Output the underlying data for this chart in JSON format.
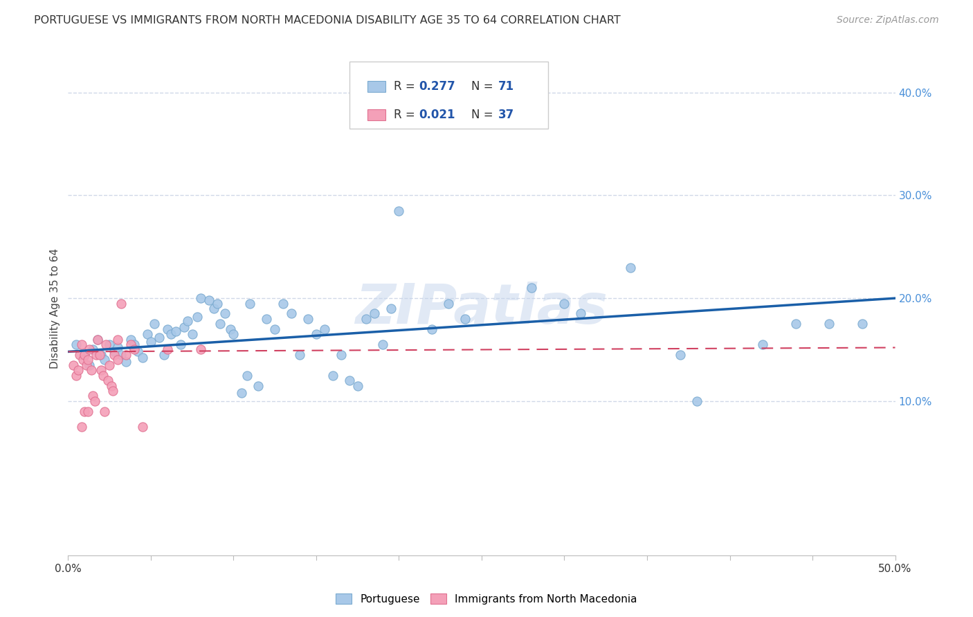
{
  "title": "PORTUGUESE VS IMMIGRANTS FROM NORTH MACEDONIA DISABILITY AGE 35 TO 64 CORRELATION CHART",
  "source": "Source: ZipAtlas.com",
  "ylabel": "Disability Age 35 to 64",
  "xlim": [
    0.0,
    0.5
  ],
  "ylim": [
    -0.05,
    0.43
  ],
  "yticks": [
    0.1,
    0.2,
    0.3,
    0.4
  ],
  "background_color": "#ffffff",
  "grid_color": "#d0d8e8",
  "r_portuguese": 0.277,
  "n_portuguese": 71,
  "r_north_macedonia": 0.021,
  "n_north_macedonia": 37,
  "portuguese_color": "#a8c8e8",
  "portuguese_edge": "#7aaad0",
  "north_macedonia_color": "#f4a0b8",
  "north_macedonia_edge": "#e07090",
  "trend_blue": "#1a5fa8",
  "trend_pink": "#d04060",
  "watermark": "ZIPatlas",
  "title_fontsize": 11.5,
  "axis_label_fontsize": 11,
  "tick_fontsize": 11,
  "legend_fontsize": 12,
  "source_fontsize": 10,
  "portuguese_scatter_x": [
    0.005,
    0.01,
    0.013,
    0.015,
    0.018,
    0.02,
    0.022,
    0.025,
    0.028,
    0.03,
    0.032,
    0.035,
    0.038,
    0.04,
    0.042,
    0.045,
    0.048,
    0.05,
    0.052,
    0.055,
    0.058,
    0.06,
    0.062,
    0.065,
    0.068,
    0.07,
    0.072,
    0.075,
    0.078,
    0.08,
    0.085,
    0.088,
    0.09,
    0.092,
    0.095,
    0.098,
    0.1,
    0.105,
    0.108,
    0.11,
    0.115,
    0.12,
    0.125,
    0.13,
    0.135,
    0.14,
    0.145,
    0.15,
    0.155,
    0.16,
    0.165,
    0.17,
    0.175,
    0.18,
    0.185,
    0.19,
    0.195,
    0.2,
    0.22,
    0.23,
    0.24,
    0.28,
    0.3,
    0.31,
    0.34,
    0.37,
    0.38,
    0.42,
    0.44,
    0.46,
    0.48
  ],
  "portuguese_scatter_y": [
    0.155,
    0.145,
    0.135,
    0.15,
    0.16,
    0.145,
    0.14,
    0.155,
    0.148,
    0.152,
    0.145,
    0.138,
    0.16,
    0.155,
    0.148,
    0.142,
    0.165,
    0.158,
    0.175,
    0.162,
    0.145,
    0.17,
    0.165,
    0.168,
    0.155,
    0.172,
    0.178,
    0.165,
    0.182,
    0.2,
    0.198,
    0.19,
    0.195,
    0.175,
    0.185,
    0.17,
    0.165,
    0.108,
    0.125,
    0.195,
    0.115,
    0.18,
    0.17,
    0.195,
    0.185,
    0.145,
    0.18,
    0.165,
    0.17,
    0.125,
    0.145,
    0.12,
    0.115,
    0.18,
    0.185,
    0.155,
    0.19,
    0.285,
    0.17,
    0.195,
    0.18,
    0.21,
    0.195,
    0.185,
    0.23,
    0.145,
    0.1,
    0.155,
    0.175,
    0.175,
    0.175
  ],
  "north_macedonia_scatter_x": [
    0.003,
    0.005,
    0.006,
    0.007,
    0.008,
    0.009,
    0.01,
    0.011,
    0.012,
    0.013,
    0.014,
    0.015,
    0.016,
    0.017,
    0.018,
    0.019,
    0.02,
    0.021,
    0.022,
    0.023,
    0.024,
    0.025,
    0.026,
    0.027,
    0.028,
    0.03,
    0.032,
    0.035,
    0.038,
    0.04,
    0.045,
    0.06,
    0.08,
    0.03,
    0.01,
    0.008,
    0.012
  ],
  "north_macedonia_scatter_y": [
    0.135,
    0.125,
    0.13,
    0.145,
    0.155,
    0.14,
    0.145,
    0.135,
    0.14,
    0.15,
    0.13,
    0.105,
    0.1,
    0.145,
    0.16,
    0.145,
    0.13,
    0.125,
    0.09,
    0.155,
    0.12,
    0.135,
    0.115,
    0.11,
    0.145,
    0.14,
    0.195,
    0.145,
    0.155,
    0.15,
    0.075,
    0.15,
    0.15,
    0.16,
    0.09,
    0.075,
    0.09
  ]
}
